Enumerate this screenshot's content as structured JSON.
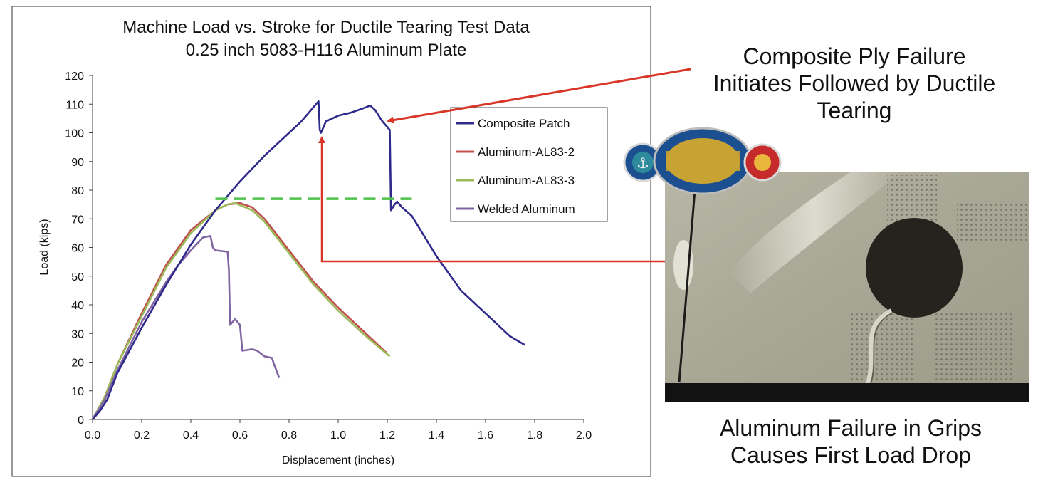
{
  "chart_data": {
    "type": "line",
    "title": [
      "Machine Load vs. Stroke for Ductile Tearing Test Data",
      "0.25 inch 5083-H116 Aluminum Plate"
    ],
    "xlabel": "Displacement (inches)",
    "ylabel": "Load (kips)",
    "xlim": [
      0,
      2.0
    ],
    "ylim": [
      0,
      120
    ],
    "x_ticks": [
      "0.0",
      "0.2",
      "0.4",
      "0.6",
      "0.8",
      "1.0",
      "1.2",
      "1.4",
      "1.6",
      "1.8",
      "2.0"
    ],
    "y_ticks": [
      "0",
      "10",
      "20",
      "30",
      "40",
      "50",
      "60",
      "70",
      "80",
      "90",
      "100",
      "110",
      "120"
    ],
    "grid": false,
    "legend_position": "top-right",
    "series": [
      {
        "name": "Composite Patch",
        "color": "#2e2a8c",
        "points": [
          [
            0,
            0
          ],
          [
            0.03,
            3
          ],
          [
            0.06,
            7
          ],
          [
            0.1,
            16
          ],
          [
            0.2,
            32
          ],
          [
            0.3,
            47
          ],
          [
            0.4,
            61
          ],
          [
            0.5,
            73
          ],
          [
            0.6,
            83
          ],
          [
            0.7,
            92
          ],
          [
            0.8,
            100
          ],
          [
            0.85,
            104
          ],
          [
            0.9,
            109
          ],
          [
            0.92,
            111
          ],
          [
            0.925,
            101
          ],
          [
            0.93,
            100
          ],
          [
            0.95,
            104
          ],
          [
            1.0,
            106
          ],
          [
            1.05,
            107
          ],
          [
            1.1,
            108.5
          ],
          [
            1.13,
            109.5
          ],
          [
            1.15,
            108
          ],
          [
            1.18,
            104
          ],
          [
            1.2,
            102
          ],
          [
            1.21,
            101
          ],
          [
            1.215,
            73
          ],
          [
            1.23,
            75
          ],
          [
            1.24,
            76
          ],
          [
            1.26,
            74
          ],
          [
            1.3,
            71
          ],
          [
            1.4,
            57
          ],
          [
            1.5,
            45
          ],
          [
            1.6,
            37
          ],
          [
            1.7,
            29
          ],
          [
            1.76,
            26
          ]
        ]
      },
      {
        "name": "Aluminum-AL83-2",
        "color": "#c0504d",
        "points": [
          [
            0,
            0
          ],
          [
            0.05,
            8
          ],
          [
            0.1,
            19
          ],
          [
            0.2,
            37
          ],
          [
            0.3,
            54
          ],
          [
            0.4,
            66
          ],
          [
            0.5,
            73
          ],
          [
            0.55,
            75
          ],
          [
            0.6,
            75.5
          ],
          [
            0.65,
            74
          ],
          [
            0.7,
            70
          ],
          [
            0.8,
            59
          ],
          [
            0.9,
            48
          ],
          [
            1.0,
            39
          ],
          [
            1.1,
            31
          ],
          [
            1.2,
            23
          ]
        ]
      },
      {
        "name": "Aluminum-AL83-3",
        "color": "#9bbb59",
        "points": [
          [
            0,
            0
          ],
          [
            0.05,
            8
          ],
          [
            0.1,
            19
          ],
          [
            0.2,
            36
          ],
          [
            0.3,
            53
          ],
          [
            0.4,
            65
          ],
          [
            0.5,
            73
          ],
          [
            0.55,
            75
          ],
          [
            0.58,
            75.5
          ],
          [
            0.65,
            73
          ],
          [
            0.7,
            69
          ],
          [
            0.8,
            58
          ],
          [
            0.9,
            47
          ],
          [
            1.0,
            38
          ],
          [
            1.1,
            30
          ],
          [
            1.21,
            22
          ]
        ]
      },
      {
        "name": "Welded Aluminum",
        "color": "#8064a2",
        "points": [
          [
            0,
            0
          ],
          [
            0.05,
            7
          ],
          [
            0.1,
            17
          ],
          [
            0.2,
            34
          ],
          [
            0.3,
            48
          ],
          [
            0.35,
            54
          ],
          [
            0.4,
            59
          ],
          [
            0.45,
            63.5
          ],
          [
            0.48,
            64
          ],
          [
            0.49,
            60
          ],
          [
            0.5,
            59
          ],
          [
            0.55,
            58.5
          ],
          [
            0.555,
            52
          ],
          [
            0.56,
            33
          ],
          [
            0.58,
            35
          ],
          [
            0.6,
            33
          ],
          [
            0.61,
            24
          ],
          [
            0.65,
            24.5
          ],
          [
            0.67,
            24
          ],
          [
            0.7,
            22
          ],
          [
            0.73,
            21.5
          ],
          [
            0.74,
            19
          ],
          [
            0.76,
            14.5
          ]
        ]
      }
    ],
    "reference_line": {
      "y": 77,
      "x_start": 0.5,
      "x_end": 1.3,
      "style": "dashed",
      "color": "#4fc34a"
    }
  },
  "annotations": {
    "top": [
      "Composite Ply Failure",
      "Initiates Followed by Ductile",
      "Tearing"
    ],
    "bottom": [
      "Aluminum Failure in Grips",
      "Causes First Load Drop"
    ],
    "arrow_color": "#d9362a"
  },
  "photo": {
    "logo_colors": {
      "blue": "#1c4f8f",
      "gold": "#c8a233",
      "red": "#c62b2b"
    }
  }
}
